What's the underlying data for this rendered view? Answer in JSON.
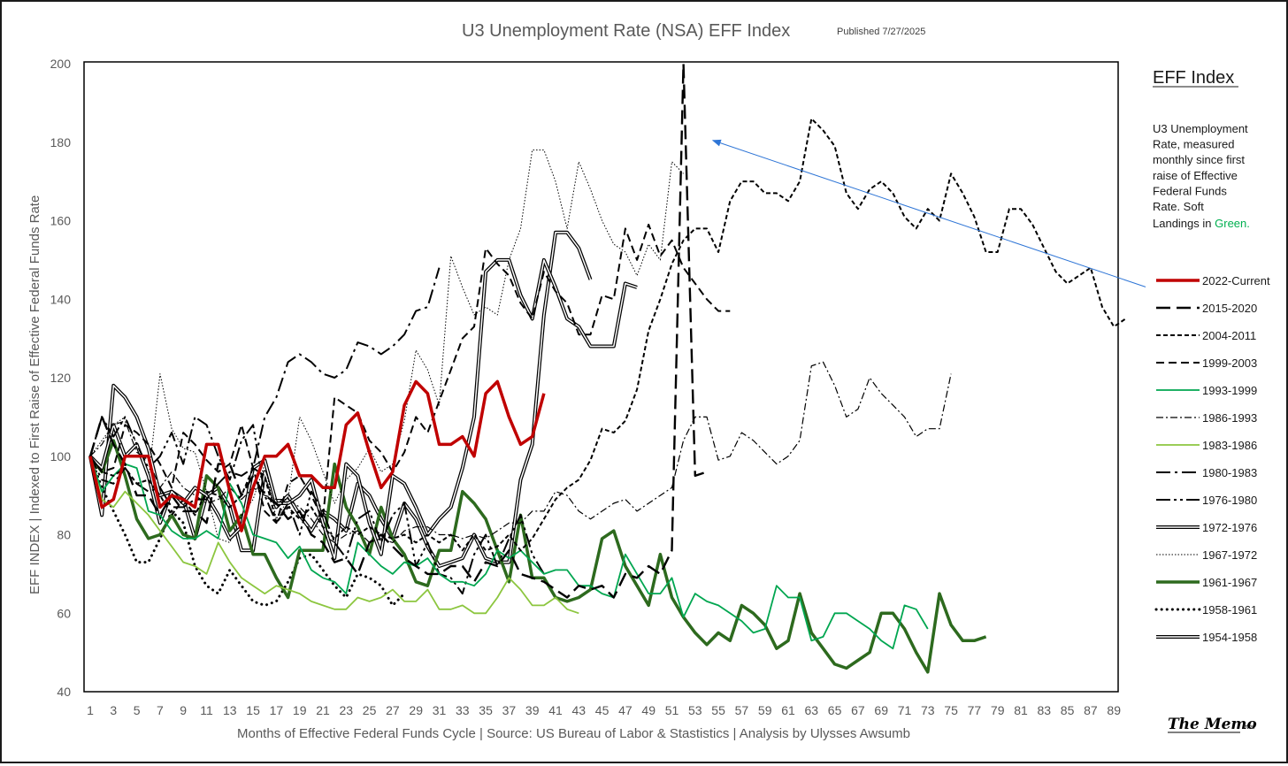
{
  "colors": {
    "red": "#c00000",
    "black": "#000000",
    "green_medium": "#00a650",
    "green_light": "#8cc63f",
    "green_dark": "#2d6a1e",
    "arrow": "#2e75d6",
    "soft_green_text": "#00b050"
  },
  "chart_data": {
    "type": "line",
    "title": "U3 Unemployment Rate (NSA) EFF Index",
    "published": "Published 7/27/2025",
    "xlabel": "Months of Effective Federal Funds Cycle  |  Source: US Bureau of Labor & Stastistics  |  Analysis by Ulysses Awsumb",
    "ylabel": "EFF INDEX | Indexed to First Raise of Effective Federal Funds Rate",
    "xlim": [
      1,
      90
    ],
    "ylim": [
      40,
      200
    ],
    "x_ticks": [
      1,
      3,
      5,
      7,
      9,
      11,
      13,
      15,
      17,
      19,
      21,
      23,
      25,
      27,
      29,
      31,
      33,
      35,
      37,
      39,
      41,
      43,
      45,
      47,
      49,
      51,
      53,
      55,
      57,
      59,
      61,
      63,
      65,
      67,
      69,
      71,
      73,
      75,
      77,
      79,
      81,
      83,
      85,
      87,
      89
    ],
    "y_ticks": [
      40,
      60,
      80,
      100,
      120,
      140,
      160,
      180,
      200
    ],
    "legend_title": "EFF Index",
    "legend_desc_lines": [
      "U3 Unemployment",
      "Rate, measured",
      "monthly since first",
      "raise of Effective",
      "Federal Funds",
      "Rate. Soft"
    ],
    "legend_desc_last": "Landings in ",
    "legend_desc_green": "Green.",
    "annotation": {
      "type": "arrow",
      "from": [
        91,
        142
      ],
      "to": [
        53,
        180
      ]
    },
    "series": [
      {
        "name": "2022-Current",
        "style": "red-thick",
        "values": [
          100,
          87,
          89,
          100,
          100,
          100,
          87,
          90,
          89,
          87,
          103,
          103,
          91,
          81,
          92,
          100,
          100,
          103,
          95,
          95,
          92,
          92,
          108,
          111,
          101,
          92,
          96,
          113,
          119,
          116,
          103,
          103,
          105,
          100,
          116,
          119,
          110,
          103,
          105,
          116
        ]
      },
      {
        "name": "2015-2020",
        "style": "long-dash",
        "values": [
          100,
          110,
          103,
          98,
          90,
          90,
          85,
          90,
          86,
          86,
          83,
          98,
          98,
          90,
          95,
          90,
          88,
          84,
          86,
          80,
          78,
          73,
          74,
          70,
          78,
          80,
          77,
          74,
          72,
          70,
          70,
          72,
          72,
          68,
          73,
          72,
          76,
          70,
          69,
          68,
          66,
          64,
          67,
          66,
          67,
          64,
          70,
          69,
          72,
          70,
          76,
          200,
          95,
          96
        ]
      },
      {
        "name": "2004-2011",
        "style": "short-dash",
        "values": [
          100,
          96,
          95,
          97,
          93,
          94,
          90,
          85,
          89,
          85,
          91,
          90,
          87,
          90,
          97,
          95,
          83,
          87,
          84,
          87,
          82,
          79,
          82,
          80,
          82,
          80,
          79,
          80,
          78,
          80,
          78,
          80,
          76,
          80,
          76,
          77,
          80,
          76,
          79,
          84,
          89,
          92,
          94,
          99,
          107,
          106,
          109,
          117,
          132,
          140,
          149,
          155,
          158,
          158,
          152,
          165,
          170,
          170,
          167,
          167,
          165,
          170,
          186,
          183,
          179,
          167,
          163,
          168,
          170,
          167,
          161,
          158,
          163,
          160,
          172,
          167,
          161,
          152,
          152,
          163,
          163,
          159,
          153,
          147,
          144,
          146,
          148,
          138,
          133,
          135
        ]
      },
      {
        "name": "1999-2003",
        "style": "dash",
        "values": [
          100,
          96,
          97,
          108,
          106,
          103,
          98,
          92,
          106,
          103,
          99,
          96,
          98,
          108,
          97,
          86,
          83,
          93,
          95,
          90,
          84,
          115,
          113,
          111,
          104,
          101,
          96,
          101,
          110,
          106,
          114,
          122,
          130,
          133,
          153,
          149,
          146,
          139,
          135,
          147,
          142,
          139,
          131,
          131,
          141,
          140,
          158,
          150,
          159,
          151,
          155,
          148,
          144,
          140,
          137,
          137
        ]
      },
      {
        "name": "1993-1999",
        "style": "green-medium",
        "values": [
          100,
          91,
          95,
          98,
          97,
          86,
          85,
          81,
          79,
          79,
          81,
          79,
          93,
          88,
          80,
          79,
          78,
          74,
          77,
          71,
          69,
          68,
          65,
          78,
          75,
          72,
          70,
          73,
          72,
          74,
          70,
          68,
          68,
          67,
          70,
          76,
          74,
          76,
          73,
          70,
          71,
          71,
          67,
          67,
          65,
          64,
          75,
          70,
          65,
          65,
          69,
          59,
          65,
          63,
          62,
          60,
          58,
          55,
          56,
          67,
          64,
          64,
          53,
          54,
          60,
          60,
          58,
          56,
          53,
          51,
          62,
          61,
          56
        ]
      },
      {
        "name": "1986-1993",
        "style": "dash-dot",
        "values": [
          100,
          103,
          108,
          109,
          101,
          99,
          92,
          96,
          92,
          90,
          88,
          89,
          92,
          89,
          92,
          90,
          89,
          89,
          87,
          84,
          80,
          78,
          80,
          81,
          78,
          79,
          78,
          81,
          82,
          82,
          80,
          80,
          79,
          80,
          79,
          81,
          83,
          83,
          86,
          86,
          91,
          90,
          86,
          84,
          86,
          88,
          89,
          86,
          88,
          90,
          92,
          104,
          110,
          110,
          99,
          100,
          106,
          104,
          101,
          98,
          100,
          104,
          123,
          124,
          118,
          110,
          112,
          120,
          116,
          113,
          110,
          105,
          107,
          107,
          121
        ]
      },
      {
        "name": "1983-1986",
        "style": "green-light",
        "values": [
          100,
          89,
          87,
          91,
          88,
          85,
          81,
          77,
          73,
          72,
          70,
          78,
          73,
          69,
          67,
          65,
          67,
          66,
          65,
          63,
          62,
          61,
          61,
          64,
          63,
          64,
          66,
          63,
          63,
          66,
          61,
          61,
          62,
          60,
          60,
          64,
          69,
          66,
          62,
          62,
          64,
          61,
          60
        ]
      },
      {
        "name": "1980-1983",
        "style": "long-dash-dot",
        "values": [
          100,
          94,
          93,
          97,
          93,
          91,
          92,
          87,
          87,
          89,
          89,
          93,
          96,
          95,
          97,
          110,
          115,
          124,
          126,
          124,
          121,
          120,
          122,
          129,
          128,
          126,
          128,
          131,
          137,
          138,
          148
        ]
      },
      {
        "name": "1976-1980",
        "style": "long-dash-dot-dot",
        "values": [
          100,
          110,
          105,
          110,
          103,
          97,
          100,
          106,
          98,
          110,
          108,
          100,
          94,
          104,
          108,
          90,
          83,
          88,
          80,
          91,
          86,
          78,
          74,
          84,
          86,
          78,
          85,
          88,
          72,
          78,
          70,
          69,
          65,
          75,
          80,
          72,
          79,
          85,
          75,
          70
        ]
      },
      {
        "name": "1972-1976",
        "style": "double",
        "values": [
          100,
          97,
          108,
          100,
          103,
          95,
          83,
          91,
          88,
          92,
          90,
          85,
          79,
          82,
          97,
          99,
          88,
          88,
          90,
          94,
          83,
          74,
          98,
          95,
          83,
          75,
          95,
          93,
          87,
          80,
          84,
          87,
          97,
          110,
          147,
          150,
          150,
          141,
          135,
          150,
          143,
          135,
          133,
          128,
          128,
          128,
          144,
          143
        ]
      },
      {
        "name": "1967-1972",
        "style": "dotted",
        "values": [
          100,
          104,
          108,
          110,
          103,
          94,
          121,
          107,
          102,
          101,
          91,
          79,
          78,
          85,
          89,
          98,
          84,
          89,
          110,
          104,
          96,
          88,
          94,
          97,
          102,
          96,
          98,
          109,
          127,
          122,
          113,
          151,
          143,
          136,
          138,
          136,
          150,
          158,
          178,
          178,
          170,
          158,
          175,
          168,
          160,
          154,
          152,
          146,
          154,
          150,
          175,
          172
        ]
      },
      {
        "name": "1961-1967",
        "style": "green-dark",
        "values": [
          100,
          96,
          104,
          95,
          84,
          79,
          80,
          85,
          80,
          79,
          95,
          92,
          81,
          85,
          75,
          75,
          69,
          64,
          76,
          76,
          76,
          98,
          87,
          82,
          75,
          87,
          79,
          75,
          68,
          67,
          76,
          76,
          91,
          88,
          84,
          76,
          68,
          85,
          69,
          69,
          64,
          63,
          64,
          66,
          79,
          81,
          72,
          67,
          62,
          75,
          64,
          59,
          55,
          52,
          55,
          53,
          62,
          60,
          57,
          51,
          53,
          65,
          55,
          51,
          47,
          46,
          48,
          50,
          60,
          60,
          56,
          50,
          45,
          65,
          57,
          53,
          53,
          54
        ]
      },
      {
        "name": "1958-1961",
        "style": "round-dots",
        "values": [
          100,
          92,
          86,
          80,
          73,
          73,
          79,
          86,
          83,
          72,
          67,
          65,
          71,
          67,
          63,
          62,
          63,
          68,
          74,
          75,
          71,
          67,
          64,
          70,
          69,
          67,
          62,
          65
        ]
      },
      {
        "name": "1954-1958",
        "style": "double",
        "values": [
          100,
          85,
          118,
          115,
          110,
          102,
          90,
          91,
          89,
          79,
          90,
          92,
          87,
          76,
          76,
          96,
          87,
          90,
          85,
          81,
          86,
          84,
          81,
          93,
          90,
          84,
          79,
          88,
          84,
          77,
          72,
          73,
          74,
          80,
          74,
          73,
          73,
          94,
          103,
          136,
          157,
          157,
          153,
          145
        ]
      }
    ]
  }
}
